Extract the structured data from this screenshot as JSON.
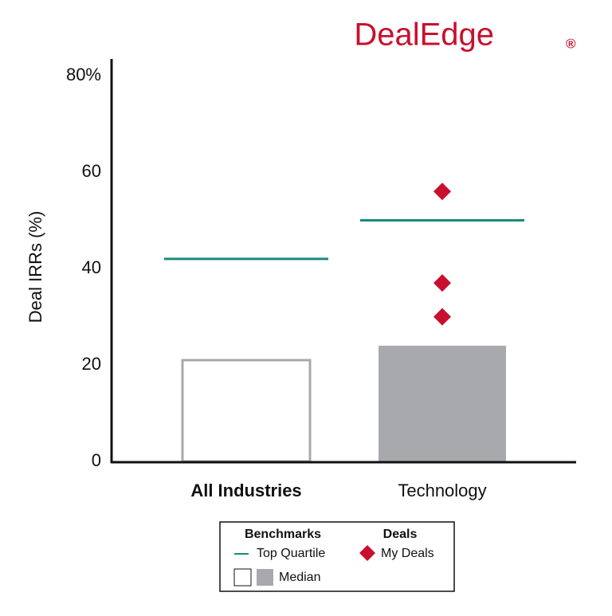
{
  "chart_data": {
    "type": "bar",
    "logo": "DealEdge",
    "logo_mark": "®",
    "y_label": "Deal IRRs (%)",
    "categories": [
      "All Industries",
      "Technology"
    ],
    "ylim": [
      0,
      80
    ],
    "yticks": [
      0,
      20,
      40,
      {
        "value": 80,
        "label": "80%"
      },
      60
    ],
    "series": [
      {
        "name": "Median",
        "type": "bar",
        "colors": [
          "#ffffff",
          "#a7a9ac"
        ],
        "stroke": "#a7a9ac",
        "values": [
          21,
          24
        ]
      },
      {
        "name": "Top Quartile",
        "type": "level",
        "color": "#1a8a7f",
        "values": [
          42,
          50
        ]
      },
      {
        "name": "My Deals",
        "type": "scatter",
        "color": "#c8102e",
        "x": [
          "Technology",
          "Technology",
          "Technology"
        ],
        "values": [
          56,
          37,
          30
        ]
      }
    ],
    "legend_groups": [
      "Benchmarks",
      "Deals"
    ]
  }
}
